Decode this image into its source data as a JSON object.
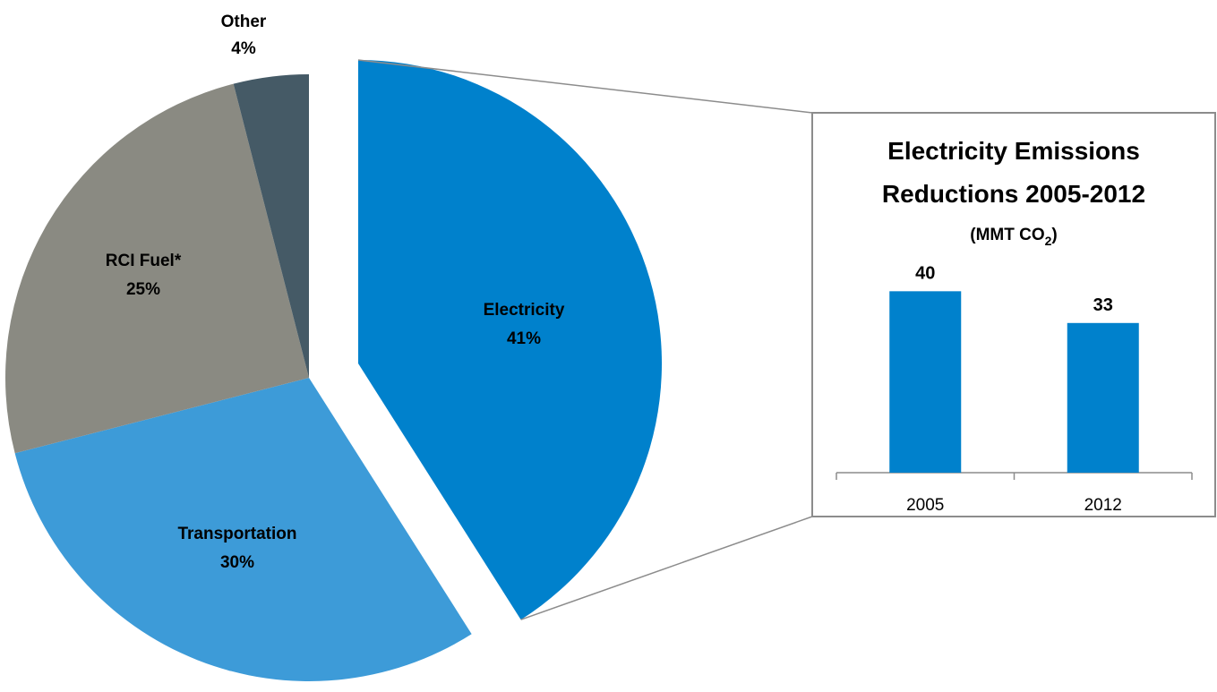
{
  "chart_data": [
    {
      "type": "pie",
      "slices": [
        {
          "label": "Electricity",
          "value": 41,
          "value_label": "41%",
          "color": "#0081CC",
          "exploded": true
        },
        {
          "label": "Transportation",
          "value": 30,
          "value_label": "30%",
          "color": "#3D9BD8",
          "exploded": false
        },
        {
          "label": "RCI Fuel*",
          "value": 25,
          "value_label": "25%",
          "color": "#8A8A82",
          "exploded": false
        },
        {
          "label": "Other",
          "value": 4,
          "value_label": "4%",
          "color": "#455A66",
          "exploded": false
        }
      ]
    },
    {
      "type": "bar",
      "title_line1": "Electricity Emissions",
      "title_line2": "Reductions 2005-2012",
      "units_prefix": "(MMT CO",
      "units_sub": "2",
      "units_suffix": ")",
      "categories": [
        "2005",
        "2012"
      ],
      "values": [
        40,
        33
      ],
      "value_labels": [
        "40",
        "33"
      ],
      "bar_color": "#0081CC",
      "ylim": [
        0,
        45
      ]
    }
  ]
}
